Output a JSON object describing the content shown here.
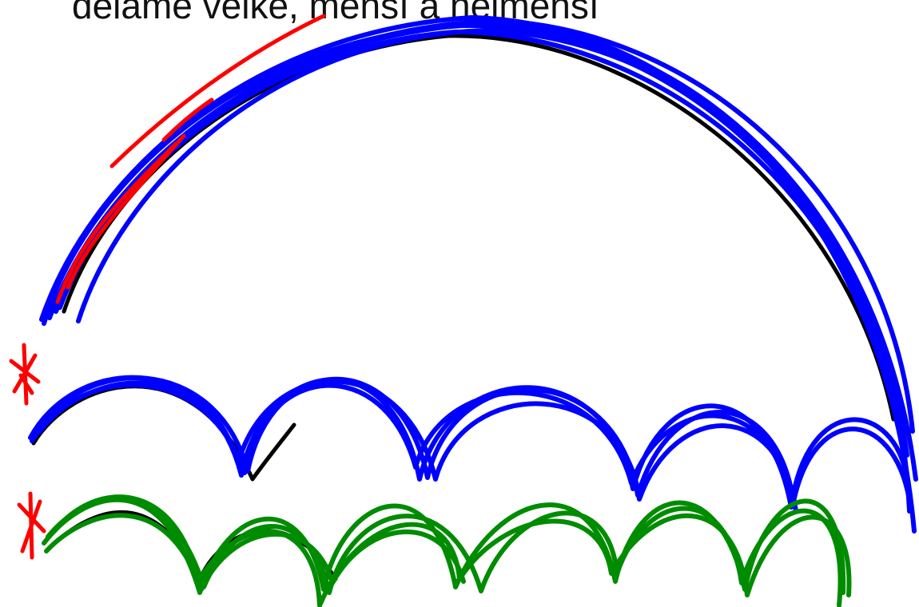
{
  "heading": "děláme velké, menší a nejmenší",
  "colors": {
    "background": "#ffffff",
    "text": "#111111",
    "black_stroke": "#000000",
    "blue_stroke": "#0000ff",
    "red_stroke": "#ff0000",
    "green_stroke": "#008c00"
  },
  "drawing": {
    "big_jump_strokes": 1,
    "big_jump_retraced_strokes": 6,
    "medium_jumps": 5,
    "small_jumps": 7,
    "start_markers": 2
  }
}
